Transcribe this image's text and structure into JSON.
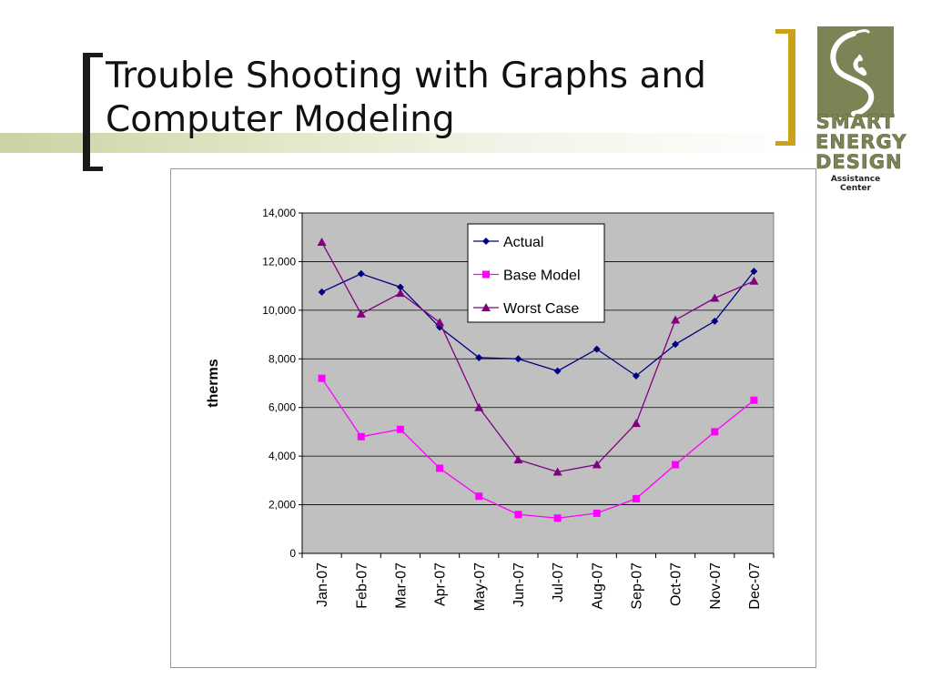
{
  "slide": {
    "title_line1": "Trouble Shooting with Graphs and",
    "title_line2": "Computer Modeling"
  },
  "logo": {
    "line1": "SMART",
    "line2": "ENERGY",
    "line3": "DESIGN",
    "sub": "Assistance Center",
    "icon": "phone-swirl-icon",
    "color": "#7b8454"
  },
  "chart_data": {
    "type": "line",
    "ylabel": "therms",
    "xlabel": "",
    "ylim": [
      0,
      14000
    ],
    "yticks": [
      0,
      2000,
      4000,
      6000,
      8000,
      10000,
      12000,
      14000
    ],
    "ytick_labels": [
      "0",
      "2,000",
      "4,000",
      "6,000",
      "8,000",
      "10,000",
      "12,000",
      "14,000"
    ],
    "grid": true,
    "plot_background": "#c0c0c0",
    "legend_position": "top-center",
    "categories": [
      "Jan-07",
      "Feb-07",
      "Mar-07",
      "Apr-07",
      "May-07",
      "Jun-07",
      "Jul-07",
      "Aug-07",
      "Sep-07",
      "Oct-07",
      "Nov-07",
      "Dec-07"
    ],
    "series": [
      {
        "name": "Actual",
        "color": "#000080",
        "marker": "diamond",
        "values": [
          10750,
          11500,
          10950,
          9300,
          8050,
          8000,
          7500,
          8400,
          7300,
          8600,
          9550,
          11600
        ]
      },
      {
        "name": "Base Model",
        "color": "#ff00ff",
        "marker": "square",
        "values": [
          7200,
          4800,
          5100,
          3500,
          2350,
          1600,
          1450,
          1650,
          2250,
          3650,
          5000,
          6300
        ]
      },
      {
        "name": "Worst Case",
        "color": "#800080",
        "marker": "triangle",
        "values": [
          12800,
          9850,
          10700,
          9500,
          6000,
          3850,
          3350,
          3650,
          5350,
          9600,
          10500,
          11200
        ]
      }
    ]
  }
}
